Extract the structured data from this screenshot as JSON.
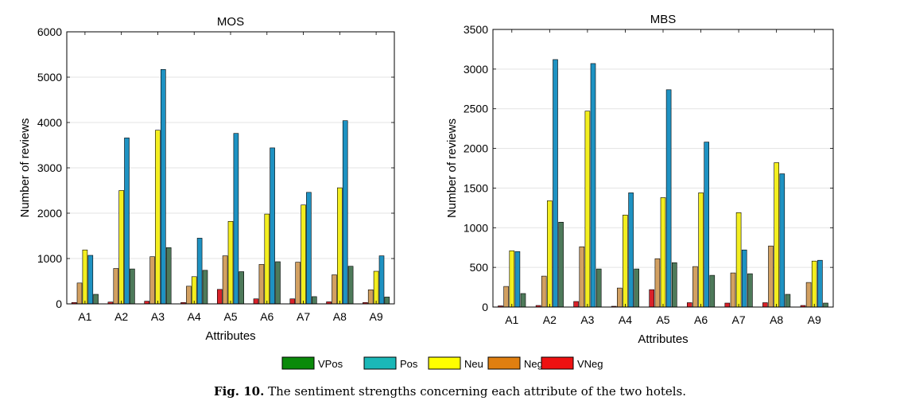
{
  "chart_data": [
    {
      "type": "bar",
      "title": "MOS",
      "xlabel": "Attributes",
      "ylabel": "Number of reviews",
      "ylim": [
        0,
        6000
      ],
      "yticks": [
        0,
        1000,
        2000,
        3000,
        4000,
        5000,
        6000
      ],
      "grid": "horizontal",
      "categories": [
        "A1",
        "A2",
        "A3",
        "A4",
        "A5",
        "A6",
        "A7",
        "A8",
        "A9"
      ],
      "series": [
        {
          "name": "VNeg",
          "values": [
            30,
            40,
            60,
            30,
            320,
            110,
            110,
            45,
            30
          ]
        },
        {
          "name": "Neg",
          "values": [
            460,
            780,
            1040,
            390,
            1060,
            870,
            920,
            640,
            310
          ]
        },
        {
          "name": "Neu",
          "values": [
            1190,
            2500,
            3830,
            600,
            1820,
            1980,
            2180,
            2560,
            720
          ]
        },
        {
          "name": "Pos",
          "values": [
            1070,
            3660,
            5170,
            1450,
            3760,
            3440,
            2460,
            4040,
            1060
          ]
        },
        {
          "name": "VPos",
          "values": [
            210,
            770,
            1240,
            740,
            710,
            930,
            160,
            830,
            150
          ]
        }
      ]
    },
    {
      "type": "bar",
      "title": "MBS",
      "xlabel": "Attributes",
      "ylabel": "Number of reviews",
      "ylim": [
        0,
        3500
      ],
      "yticks": [
        0,
        500,
        1000,
        1500,
        2000,
        2500,
        3000,
        3500
      ],
      "grid": "horizontal",
      "categories": [
        "A1",
        "A2",
        "A3",
        "A4",
        "A5",
        "A6",
        "A7",
        "A8",
        "A9"
      ],
      "series": [
        {
          "name": "VNeg",
          "values": [
            15,
            20,
            70,
            10,
            220,
            55,
            50,
            55,
            20
          ]
        },
        {
          "name": "Neg",
          "values": [
            260,
            390,
            760,
            240,
            610,
            510,
            430,
            770,
            310
          ]
        },
        {
          "name": "Neu",
          "values": [
            710,
            1340,
            2470,
            1160,
            1380,
            1440,
            1190,
            1820,
            580
          ]
        },
        {
          "name": "Pos",
          "values": [
            700,
            3120,
            3070,
            1440,
            2740,
            2080,
            720,
            1680,
            590
          ]
        },
        {
          "name": "VPos",
          "values": [
            170,
            1070,
            480,
            480,
            560,
            400,
            420,
            160,
            50
          ]
        }
      ]
    }
  ],
  "legend": {
    "placement": "bottom",
    "entries": [
      {
        "label": "VPos",
        "color": "#0a8a0a"
      },
      {
        "label": "Pos",
        "color": "#1ab8b8"
      },
      {
        "label": "Neu",
        "color": "#ffff00"
      },
      {
        "label": "Neg",
        "color": "#e07f10"
      },
      {
        "label": "VNeg",
        "color": "#ee1111"
      }
    ]
  },
  "bar_colors": {
    "VNeg": "#d9222a",
    "Neg": "#d2a061",
    "Neu": "#f3ee1f",
    "Pos": "#1e92c2",
    "VPos": "#4e7a5a"
  },
  "caption": {
    "label": "Fig. 10.",
    "text": " The sentiment strengths concerning each attribute of the two hotels."
  }
}
